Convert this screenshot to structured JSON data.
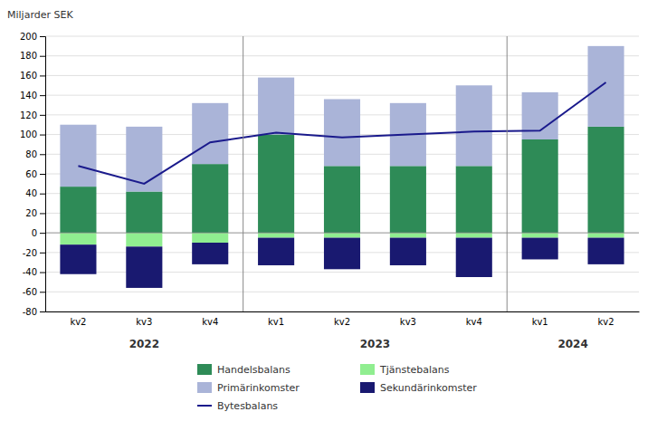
{
  "chart_data": {
    "type": "bar",
    "stacked": true,
    "categories": [
      "kv2",
      "kv3",
      "kv4",
      "kv1",
      "kv2",
      "kv3",
      "kv4",
      "kv1",
      "kv2"
    ],
    "category_groups": [
      {
        "label": "2022",
        "start": 0,
        "end": 2
      },
      {
        "label": "2023",
        "start": 3,
        "end": 6
      },
      {
        "label": "2024",
        "start": 7,
        "end": 8
      }
    ],
    "ylabel": "Miljarder SEK",
    "ylim": [
      -80,
      200
    ],
    "yticks": [
      -80,
      -60,
      -40,
      -20,
      0,
      20,
      40,
      60,
      80,
      100,
      120,
      140,
      160,
      180,
      200
    ],
    "grid": true,
    "legend": "bottom",
    "series": [
      {
        "name": "Handelsbalans",
        "type": "bar",
        "color": "#2e8b57",
        "values": [
          47,
          42,
          70,
          100,
          68,
          68,
          68,
          95,
          108
        ]
      },
      {
        "name": "Tjänstebalans",
        "type": "bar",
        "color": "#90ee90",
        "values": [
          -12,
          -14,
          -10,
          -5,
          -5,
          -5,
          -5,
          -5,
          -5
        ]
      },
      {
        "name": "Primärinkomster",
        "type": "bar",
        "color": "#aab4d8",
        "values": [
          63,
          66,
          62,
          58,
          68,
          64,
          82,
          48,
          82
        ]
      },
      {
        "name": "Sekundärinkomster",
        "type": "bar",
        "color": "#191970",
        "values": [
          -30,
          -42,
          -22,
          -28,
          -32,
          -28,
          -40,
          -22,
          -27
        ]
      },
      {
        "name": "Bytesbalans",
        "type": "line",
        "color": "#1a1a8c",
        "values": [
          68,
          50,
          92,
          102,
          97,
          100,
          103,
          104,
          153
        ]
      }
    ]
  }
}
